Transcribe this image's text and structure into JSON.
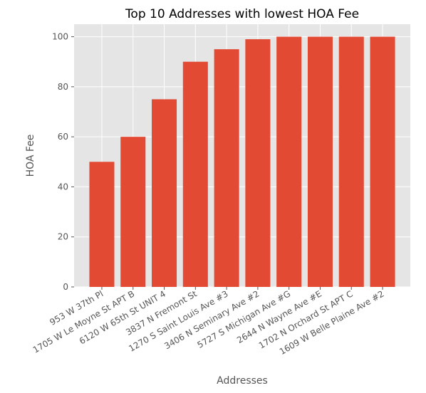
{
  "chart_data": {
    "type": "bar",
    "title": "Top 10 Addresses with lowest HOA Fee",
    "xlabel": "Addresses",
    "ylabel": "HOA Fee",
    "categories": [
      "953 W 37th Pl",
      "1705 W Le Moyne St APT B",
      "6120 W 65th St UNIT 4",
      "3837 N Fremont St",
      "1270 S Saint Louis Ave #3",
      "3406 N Seminary Ave #2",
      "5727 S Michigan Ave #G",
      "2644 N Wayne Ave #E",
      "1702 N Orchard St APT C",
      "1609 W Belle Plaine Ave #2"
    ],
    "values": [
      50,
      60,
      75,
      90,
      95,
      99,
      100,
      100,
      100,
      100
    ],
    "ylim": [
      0,
      105
    ],
    "yticks": [
      0,
      20,
      40,
      60,
      80,
      100
    ],
    "grid": true,
    "colors": {
      "bar": "#E24A33",
      "plot_background": "#E5E5E5",
      "grid": "#FFFFFF"
    }
  }
}
